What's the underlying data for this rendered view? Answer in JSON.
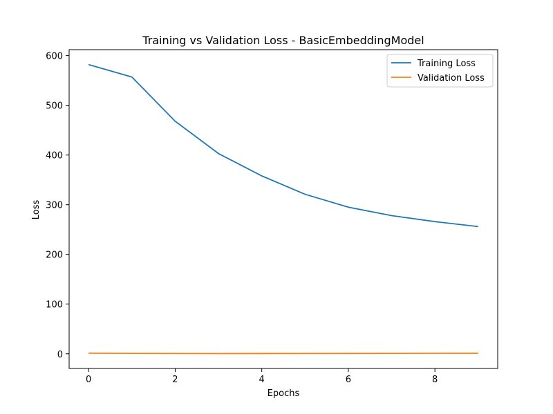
{
  "chart_data": {
    "type": "line",
    "title": "Training vs Validation Loss - BasicEmbeddingModel",
    "xlabel": "Epochs",
    "ylabel": "Loss",
    "x": [
      0,
      1,
      2,
      3,
      4,
      5,
      6,
      7,
      8,
      9
    ],
    "xlim": [
      -0.45,
      9.45
    ],
    "ylim": [
      -29.5,
      612
    ],
    "xticks": [
      0,
      2,
      4,
      6,
      8
    ],
    "yticks": [
      0,
      100,
      200,
      300,
      400,
      500,
      600
    ],
    "grid": false,
    "legend_position": "top-right",
    "series": [
      {
        "name": "Training Loss",
        "color": "#1f77b4",
        "values": [
          582,
          557,
          468,
          403,
          358,
          321,
          295,
          278,
          266,
          256
        ]
      },
      {
        "name": "Validation Loss",
        "color": "#ff7f0e",
        "values": [
          1.2,
          0.9,
          0.7,
          0.5,
          0.6,
          0.7,
          0.8,
          0.9,
          1.0,
          1.1
        ]
      }
    ]
  }
}
